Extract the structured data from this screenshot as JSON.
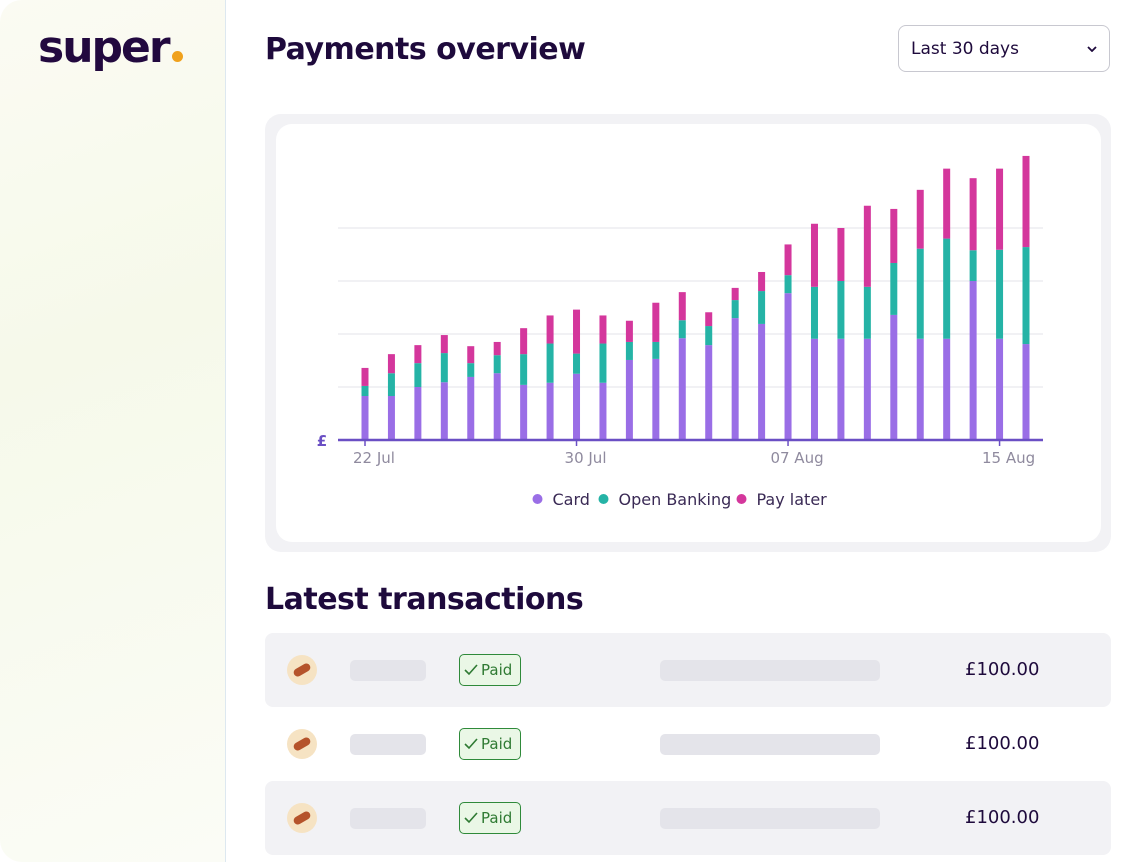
{
  "brand": "super",
  "header": {
    "title": "Payments overview",
    "select": "Last 30 days"
  },
  "chart": {
    "type": "stacked_bar",
    "y_label": "£",
    "categories": [
      "22 Jul",
      null,
      null,
      null,
      null,
      null,
      null,
      null,
      "30 Jul",
      null,
      null,
      null,
      null,
      null,
      null,
      null,
      "07 Aug",
      null,
      null,
      null,
      null,
      null,
      null,
      null,
      "15 Aug",
      null
    ],
    "ylim": [
      0,
      5.5
    ],
    "yticks": [
      1,
      2,
      3,
      4
    ],
    "grid": true,
    "series": [
      {
        "name": "Card",
        "color": "#9a6ee6",
        "values": [
          0.83,
          0.83,
          1.0,
          1.09,
          1.19,
          1.26,
          1.04,
          1.08,
          1.25,
          1.08,
          1.51,
          1.53,
          1.92,
          1.79,
          2.3,
          2.19,
          2.77,
          1.91,
          1.91,
          1.91,
          2.36,
          1.91,
          1.91,
          3.0,
          1.91,
          1.81
        ]
      },
      {
        "name": "Open Banking",
        "color": "#25b3a6",
        "values": [
          0.19,
          0.43,
          0.45,
          0.55,
          0.26,
          0.34,
          0.58,
          0.74,
          0.38,
          0.74,
          0.34,
          0.32,
          0.34,
          0.36,
          0.34,
          0.62,
          0.34,
          0.98,
          1.09,
          0.98,
          0.98,
          1.7,
          1.89,
          0.58,
          1.68,
          1.83
        ]
      },
      {
        "name": "Pay later",
        "color": "#d4379c",
        "values": [
          0.34,
          0.36,
          0.34,
          0.34,
          0.32,
          0.25,
          0.49,
          0.53,
          0.83,
          0.53,
          0.4,
          0.74,
          0.53,
          0.26,
          0.23,
          0.36,
          0.58,
          1.19,
          1.0,
          1.53,
          1.02,
          1.11,
          1.32,
          1.36,
          1.53,
          1.72
        ]
      }
    ]
  },
  "transactions": {
    "title": "Latest transactions",
    "rows": [
      {
        "status": "Paid",
        "amount": "£100.00"
      },
      {
        "status": "Paid",
        "amount": "£100.00"
      },
      {
        "status": "Paid",
        "amount": "£100.00"
      }
    ]
  }
}
